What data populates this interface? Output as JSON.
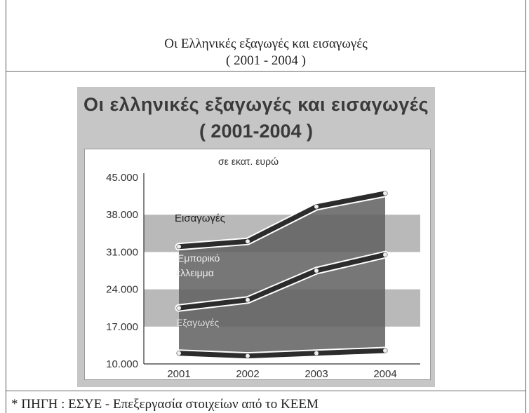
{
  "page": {
    "heading_line1": "Οι Ελληνικές εξαγωγές και εισαγωγές",
    "heading_line2": "( 2001 - 2004 )",
    "footnote": "* ΠΗΓΗ : ΕΣΥΕ - Επεξεργασία στοιχείων από το ΚΕΕΜ"
  },
  "chart_data": {
    "type": "area",
    "title": "Οι ελληνικές εξαγωγές και εισαγωγές",
    "subtitle": "( 2001-2004 )",
    "unit_label": "σε εκατ. ευρώ",
    "categories": [
      "2001",
      "2002",
      "2003",
      "2004"
    ],
    "series": [
      {
        "name": "Εισαγωγές",
        "values": [
          32000,
          33000,
          39500,
          42000
        ]
      },
      {
        "name": "Εμπορικό έλλειμμα",
        "values": [
          20500,
          22000,
          27500,
          30500
        ]
      },
      {
        "name": "Εξαγωγές",
        "values": [
          12000,
          11500,
          12000,
          12500
        ]
      }
    ],
    "ylim": [
      10000,
      45000
    ],
    "yticks": [
      "45.000",
      "38.000",
      "31.000",
      "24.000",
      "17.000",
      "10.000"
    ],
    "ytick_values": [
      45000,
      38000,
      31000,
      24000,
      17000,
      10000
    ],
    "grid": false,
    "colors": {
      "fill": "#5f5f5f",
      "line": "#2c2c2c",
      "band": "#b9b9b9",
      "background": "#c6c6c6"
    }
  }
}
